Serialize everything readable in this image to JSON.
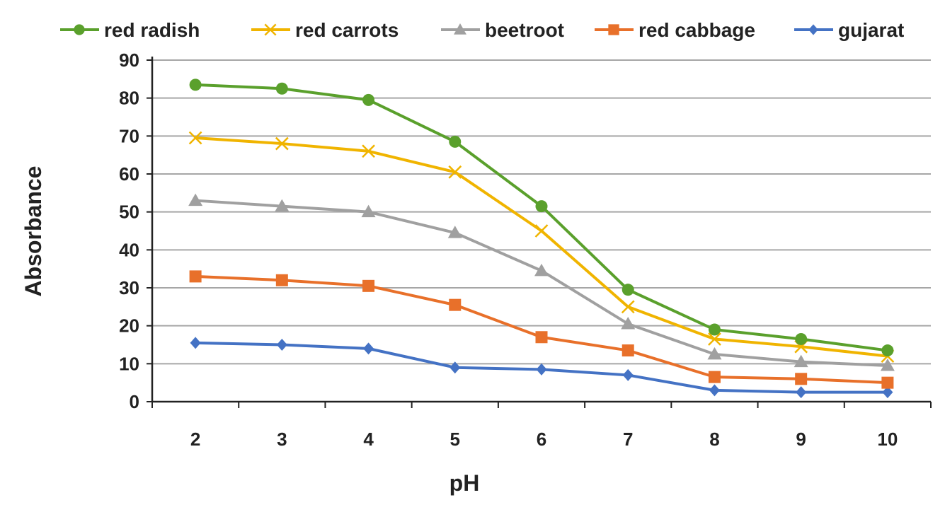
{
  "chart_data": {
    "type": "line",
    "title": "",
    "xlabel": "pH",
    "ylabel": "Absorbance",
    "x": [
      2,
      3,
      4,
      5,
      6,
      7,
      8,
      9,
      10
    ],
    "ylim": [
      0,
      90
    ],
    "yticks": [
      0,
      10,
      20,
      30,
      40,
      50,
      60,
      70,
      80,
      90
    ],
    "grid": "horizontal",
    "legend_position": "top",
    "series": [
      {
        "name": "red radish",
        "color": "#5aa02c",
        "marker": "circle",
        "values": [
          83.5,
          82.5,
          79.5,
          68.5,
          51.5,
          29.5,
          19,
          16.5,
          13.5
        ]
      },
      {
        "name": "red carrots",
        "color": "#f0b400",
        "marker": "x",
        "values": [
          69.5,
          68,
          66,
          60.5,
          45,
          25,
          16.5,
          14.5,
          12
        ]
      },
      {
        "name": "beetroot",
        "color": "#a0a0a0",
        "marker": "triangle",
        "values": [
          53,
          51.5,
          50,
          44.5,
          34.5,
          20.5,
          12.5,
          10.5,
          9.5
        ]
      },
      {
        "name": "red cabbage",
        "color": "#e8702a",
        "marker": "square",
        "values": [
          33,
          32,
          30.5,
          25.5,
          17,
          13.5,
          6.5,
          6,
          5
        ]
      },
      {
        "name": "gujarat",
        "color": "#4472c4",
        "marker": "diamond",
        "values": [
          15.5,
          15,
          14,
          9,
          8.5,
          7,
          3,
          2.5,
          2.5
        ]
      }
    ]
  }
}
